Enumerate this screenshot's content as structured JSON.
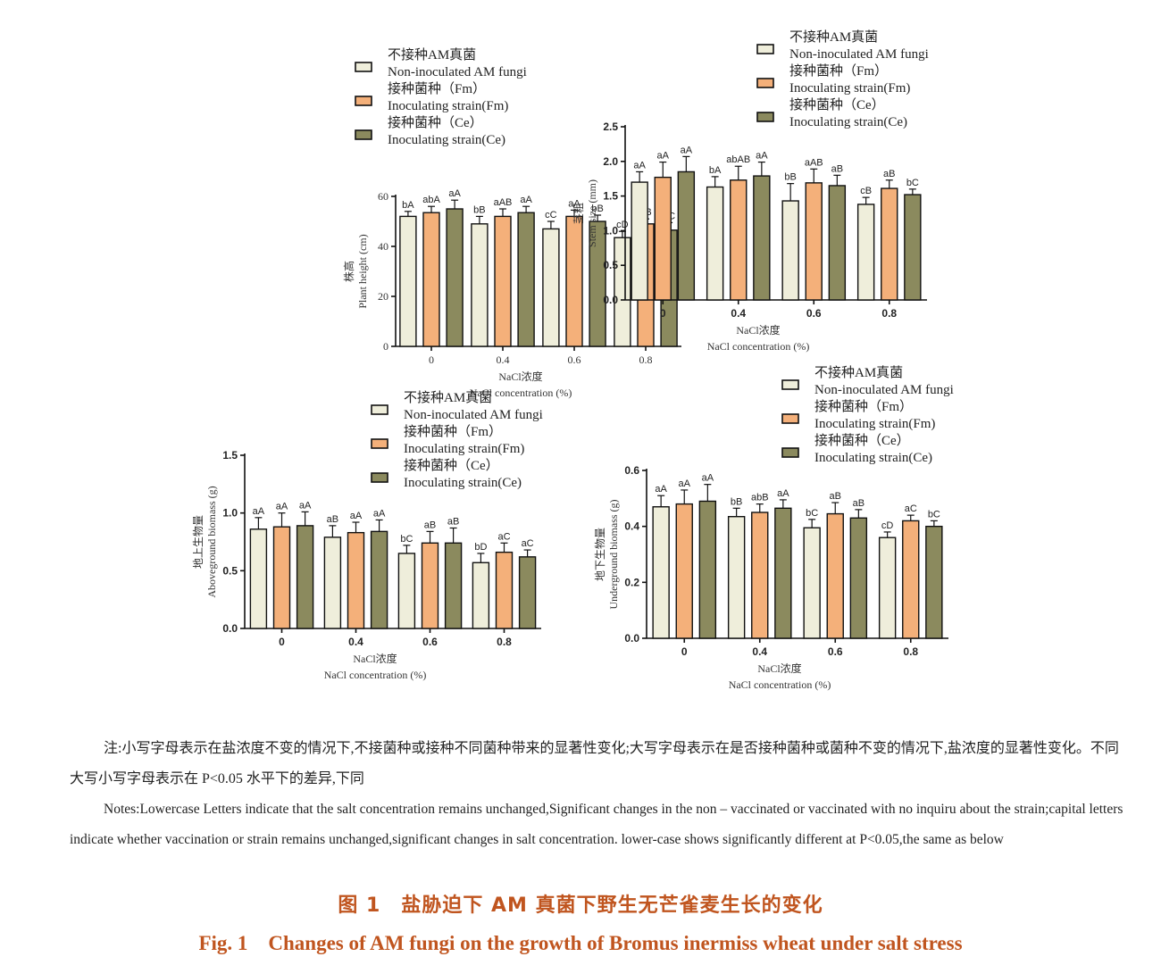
{
  "legend": {
    "labels": [
      [
        "不接种AM真菌",
        "Non-inoculated AM fungi"
      ],
      [
        "接种菌种（Fm）",
        "Inoculating strain(Fm)"
      ],
      [
        "接种菌种（Ce）",
        "Inoculating strain(Ce)"
      ]
    ]
  },
  "colors": {
    "non_inoculated": "#efeedb",
    "fm": "#f4b07a",
    "ce": "#8b8a5e",
    "axis": "#111111",
    "caption": "#c0551f"
  },
  "chart_data": [
    {
      "type": "bar",
      "categories": [
        "0",
        "0.4",
        "0.6",
        "0.8"
      ],
      "ylabel_cn": "株高",
      "ylabel_en": "Plant height (cm)",
      "xlabel_cn": "NaCl浓度",
      "xlabel_en": "NaCl concentration (%)",
      "ylim": [
        0,
        60
      ],
      "yticks": [
        "0",
        "20",
        "40",
        "60"
      ],
      "tick_style": "serif",
      "series": [
        {
          "name": "不接种AM真菌 Non-inoculated AM fungi",
          "values": [
            52,
            49,
            47,
            43.5
          ],
          "errors": [
            2,
            3,
            3,
            2.5
          ],
          "sig": [
            "bA",
            "bB",
            "cC",
            "cD"
          ]
        },
        {
          "name": "接种菌种（Fm） Inoculating strain(Fm)",
          "values": [
            53.5,
            52,
            52,
            49
          ],
          "errors": [
            2.5,
            3,
            2.5,
            2
          ],
          "sig": [
            "abA",
            "aAB",
            "aA",
            "aB"
          ]
        },
        {
          "name": "接种菌种（Ce） Inoculating strain(Ce)",
          "values": [
            55,
            53.5,
            50,
            46.5
          ],
          "errors": [
            3.5,
            2.5,
            2.5,
            3
          ],
          "sig": [
            "aA",
            "aA",
            "bB",
            "bC"
          ]
        }
      ]
    },
    {
      "type": "bar",
      "categories": [
        "0",
        "0.4",
        "0.6",
        "0.8"
      ],
      "ylabel_cn": "茎粗",
      "ylabel_en": "Stem size (mm)",
      "xlabel_cn": "NaCl浓度",
      "xlabel_en": "NaCl concentration (%)",
      "ylim": [
        0,
        2.5
      ],
      "yticks": [
        "0.0",
        "0.5",
        "1.0",
        "1.5",
        "2.0",
        "2.5"
      ],
      "tick_style": "sans",
      "series": [
        {
          "name": "不接种AM真菌 Non-inoculated AM fungi",
          "values": [
            1.7,
            1.63,
            1.43,
            1.38
          ],
          "errors": [
            0.15,
            0.15,
            0.25,
            0.1
          ],
          "sig": [
            "aA",
            "bA",
            "bB",
            "cB"
          ]
        },
        {
          "name": "接种菌种（Fm） Inoculating strain(Fm)",
          "values": [
            1.77,
            1.73,
            1.69,
            1.61
          ],
          "errors": [
            0.22,
            0.2,
            0.2,
            0.12
          ],
          "sig": [
            "aA",
            "abAB",
            "aAB",
            "aB"
          ]
        },
        {
          "name": "接种菌种（Ce） Inoculating strain(Ce)",
          "values": [
            1.85,
            1.79,
            1.65,
            1.52
          ],
          "errors": [
            0.22,
            0.2,
            0.15,
            0.08
          ],
          "sig": [
            "aA",
            "aA",
            "aB",
            "bC"
          ]
        }
      ]
    },
    {
      "type": "bar",
      "categories": [
        "0",
        "0.4",
        "0.6",
        "0.8"
      ],
      "ylabel_cn": "地上生物量",
      "ylabel_en": "Aboveground biomass (g)",
      "xlabel_cn": "NaCl浓度",
      "xlabel_en": "NaCl concentration (%)",
      "ylim": [
        0,
        1.5
      ],
      "yticks": [
        "0.0",
        "0.5",
        "1.0",
        "1.5"
      ],
      "tick_style": "sans",
      "series": [
        {
          "name": "不接种AM真菌 Non-inoculated AM fungi",
          "values": [
            0.86,
            0.79,
            0.65,
            0.57
          ],
          "errors": [
            0.1,
            0.1,
            0.07,
            0.08
          ],
          "sig": [
            "aA",
            "aB",
            "bC",
            "bD"
          ]
        },
        {
          "name": "接种菌种（Fm） Inoculating strain(Fm)",
          "values": [
            0.88,
            0.83,
            0.74,
            0.66
          ],
          "errors": [
            0.12,
            0.09,
            0.1,
            0.08
          ],
          "sig": [
            "aA",
            "aA",
            "aB",
            "aC"
          ]
        },
        {
          "name": "接种菌种（Ce） Inoculating strain(Ce)",
          "values": [
            0.89,
            0.84,
            0.74,
            0.62
          ],
          "errors": [
            0.12,
            0.1,
            0.13,
            0.06
          ],
          "sig": [
            "aA",
            "aA",
            "aB",
            "aC"
          ]
        }
      ]
    },
    {
      "type": "bar",
      "categories": [
        "0",
        "0.4",
        "0.6",
        "0.8"
      ],
      "ylabel_cn": "地下生物量",
      "ylabel_en": "Underground biomass (g)",
      "xlabel_cn": "NaCl浓度",
      "xlabel_en": "NaCl concentration (%)",
      "ylim": [
        0,
        0.6
      ],
      "yticks": [
        "0.0",
        "0.2",
        "0.4",
        "0.6"
      ],
      "tick_style": "sans",
      "series": [
        {
          "name": "不接种AM真菌 Non-inoculated AM fungi",
          "values": [
            0.47,
            0.435,
            0.395,
            0.36
          ],
          "errors": [
            0.04,
            0.03,
            0.03,
            0.02
          ],
          "sig": [
            "aA",
            "bB",
            "bC",
            "cD"
          ]
        },
        {
          "name": "接种菌种（Fm） Inoculating strain(Fm)",
          "values": [
            0.48,
            0.45,
            0.445,
            0.42
          ],
          "errors": [
            0.05,
            0.03,
            0.04,
            0.02
          ],
          "sig": [
            "aA",
            "abB",
            "aB",
            "aC"
          ]
        },
        {
          "name": "接种菌种（Ce） Inoculating strain(Ce)",
          "values": [
            0.49,
            0.465,
            0.43,
            0.4
          ],
          "errors": [
            0.06,
            0.03,
            0.03,
            0.02
          ],
          "sig": [
            "aA",
            "aA",
            "aB",
            "bC"
          ]
        }
      ]
    }
  ],
  "notes": {
    "cn": "注:小写字母表示在盐浓度不变的情况下,不接菌种或接种不同菌种带来的显著性变化;大写字母表示在是否接种菌种或菌种不变的情况下,盐浓度的显著性变化。不同大写小写字母表示在 P<0.05 水平下的差异,下同",
    "en": "Notes:Lowercase Letters indicate that the salt concentration remains unchanged,Significant changes in the non – vaccinated or vaccinated with no inquiru about the strain;capital letters indicate whether vaccination or strain remains unchanged,significant changes in salt concentration. lower-case shows significantly different at P<0.05,the same as below"
  },
  "caption": {
    "cn": "图 1　盐胁迫下 AM 真菌下野生无芒雀麦生长的变化",
    "en": "Fig. 1　Changes of AM fungi on the growth of Bromus inermiss wheat under salt stress"
  }
}
